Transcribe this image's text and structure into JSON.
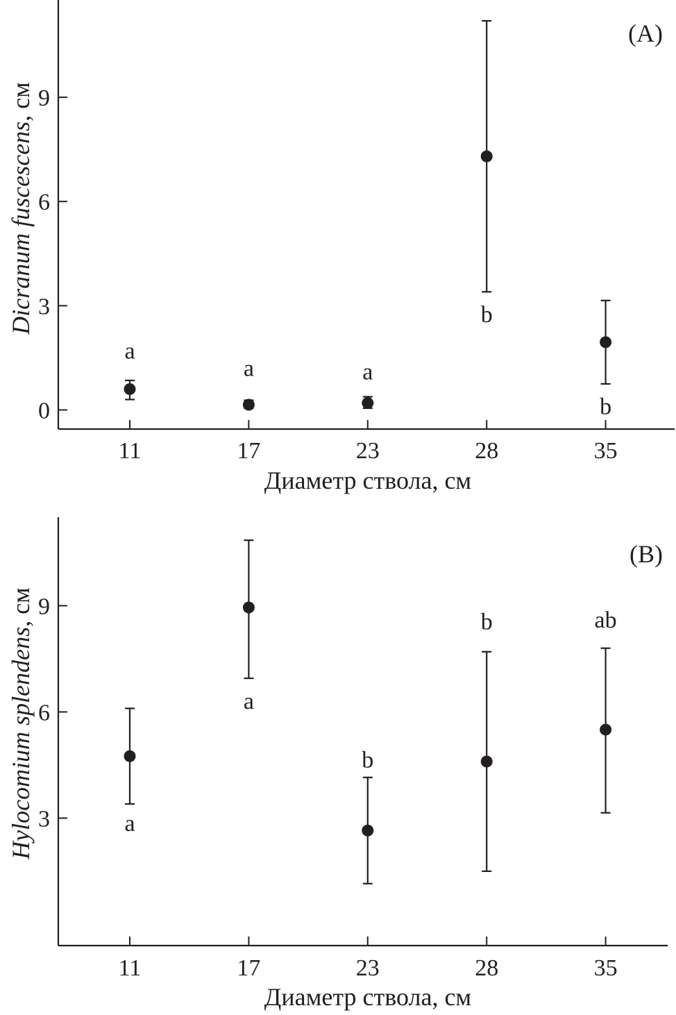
{
  "chart_data": [
    {
      "type": "scatter",
      "panel_label": "(A)",
      "xlabel": "Диаметр ствола, см",
      "ylabel_species": "Dicranum fuscescens",
      "ylabel_unit": ", см",
      "categories": [
        "11",
        "17",
        "23",
        "28",
        "35"
      ],
      "yticks": [
        "0",
        "3",
        "6",
        "9"
      ],
      "ylim": [
        -0.55,
        11.8
      ],
      "points": [
        {
          "x": "11",
          "y": 0.6,
          "low": 0.3,
          "high": 0.85,
          "letter": "a",
          "letter_y": 1.7
        },
        {
          "x": "17",
          "y": 0.15,
          "low": 0.05,
          "high": 0.28,
          "letter": "a",
          "letter_y": 1.2
        },
        {
          "x": "23",
          "y": 0.2,
          "low": 0.05,
          "high": 0.38,
          "letter": "a",
          "letter_y": 1.1
        },
        {
          "x": "28",
          "y": 7.3,
          "low": 3.4,
          "high": 11.2,
          "letter": "b",
          "letter_y": 2.75
        },
        {
          "x": "35",
          "y": 1.95,
          "low": 0.75,
          "high": 3.15,
          "letter": "b",
          "letter_y": 0.1
        }
      ]
    },
    {
      "type": "scatter",
      "panel_label": "(B)",
      "xlabel": "Диаметр ствола, см",
      "ylabel_species": "Hylocomium splendens",
      "ylabel_unit": ", см",
      "categories": [
        "11",
        "17",
        "23",
        "28",
        "35"
      ],
      "yticks": [
        "3",
        "6",
        "9"
      ],
      "ylim": [
        -0.6,
        11.5
      ],
      "points": [
        {
          "x": "11",
          "y": 4.75,
          "low": 3.4,
          "high": 6.1,
          "letter": "a",
          "letter_y": 2.85
        },
        {
          "x": "17",
          "y": 8.95,
          "low": 6.95,
          "high": 10.85,
          "letter": "a",
          "letter_y": 6.3
        },
        {
          "x": "23",
          "y": 2.65,
          "low": 1.15,
          "high": 4.15,
          "letter": "b",
          "letter_y": 4.65
        },
        {
          "x": "28",
          "y": 4.6,
          "low": 1.5,
          "high": 7.7,
          "letter": "b",
          "letter_y": 8.55
        },
        {
          "x": "35",
          "y": 5.5,
          "low": 3.15,
          "high": 7.8,
          "letter": "ab",
          "letter_y": 8.6
        }
      ]
    }
  ]
}
